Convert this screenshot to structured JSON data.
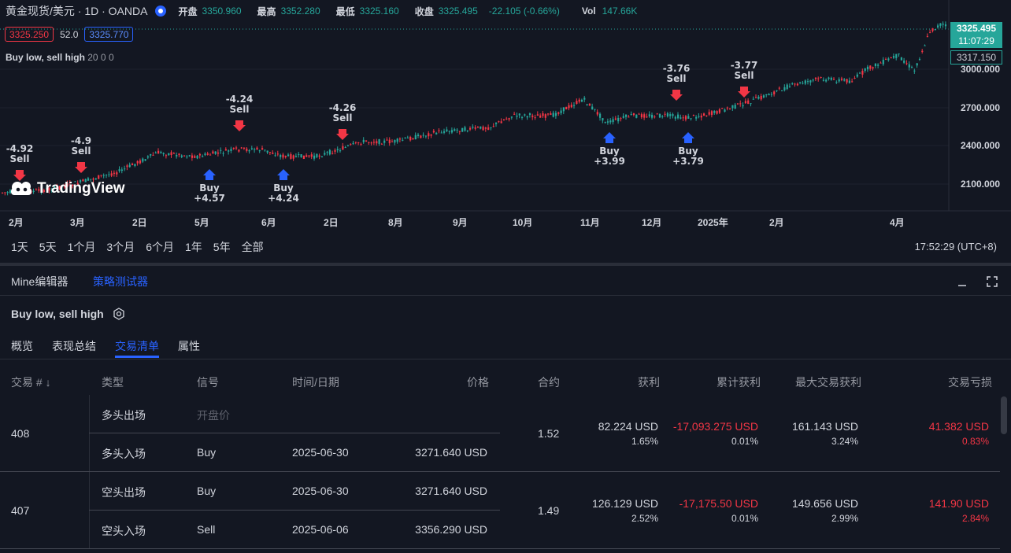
{
  "header": {
    "symbol": "黄金现货/美元 · 1D · OANDA",
    "open_label": "开盘",
    "open": "3350.960",
    "high_label": "最高",
    "high": "3352.280",
    "low_label": "最低",
    "low": "3325.160",
    "close_label": "收盘",
    "close": "3325.495",
    "change": "-22.105 (-0.66%)",
    "vol_label": "Vol",
    "vol": "147.66K",
    "bid": "3325.250",
    "spread": "52.0",
    "ask": "3325.770"
  },
  "strategy_legend": {
    "name": "Buy low, sell high",
    "params": "20 0 0"
  },
  "price_scale": {
    "ticks": [
      "3000.000",
      "2700.000",
      "2400.000",
      "2100.000"
    ],
    "last_price": "3325.495",
    "countdown": "11:07:29",
    "ref_price": "3317.150"
  },
  "time_axis": [
    "2月",
    "3月",
    "2日",
    "5月",
    "6月",
    "2日",
    "8月",
    "9月",
    "10月",
    "11月",
    "12月",
    "2025年",
    "2月",
    "4月"
  ],
  "logo": "TradingView",
  "signals": [
    {
      "kind": "sell",
      "pnl": "-4.92",
      "label": "Sell"
    },
    {
      "kind": "sell",
      "pnl": "-4.9",
      "label": "Sell"
    },
    {
      "kind": "buy",
      "pnl": "+4.57",
      "label": "Buy"
    },
    {
      "kind": "sell",
      "pnl": "-4.24",
      "label": "Sell"
    },
    {
      "kind": "buy",
      "pnl": "+4.24",
      "label": "Buy"
    },
    {
      "kind": "sell",
      "pnl": "-4.26",
      "label": "Sell"
    },
    {
      "kind": "buy",
      "pnl": "+3.99",
      "label": "Buy"
    },
    {
      "kind": "sell",
      "pnl": "-3.76",
      "label": "Sell"
    },
    {
      "kind": "buy",
      "pnl": "+3.79",
      "label": "Buy"
    },
    {
      "kind": "sell",
      "pnl": "-3.77",
      "label": "Sell"
    }
  ],
  "ranges": [
    "1天",
    "5天",
    "1个月",
    "3个月",
    "6个月",
    "1年",
    "5年",
    "全部"
  ],
  "clock": "17:52:29 (UTC+8)",
  "panel": {
    "tab_editor": "Mine编辑器",
    "tab_tester": "策略测试器",
    "strategy_name": "Buy low, sell high",
    "sub_tabs": [
      "概览",
      "表现总结",
      "交易清单",
      "属性"
    ]
  },
  "table": {
    "headers": {
      "trade_no": "交易 # ↓",
      "type": "类型",
      "signal": "信号",
      "datetime": "时间/日期",
      "price": "价格",
      "contracts": "合约",
      "profit": "获利",
      "cum_profit": "累计获利",
      "max_runup": "最大交易获利",
      "drawdown": "交易亏损"
    },
    "trades": [
      {
        "id": "408",
        "exit_type": "多头出场",
        "exit_signal": "开盘价",
        "exit_date": "",
        "exit_price": "",
        "entry_type": "多头入场",
        "entry_signal": "Buy",
        "entry_date": "2025-06-30",
        "entry_price": "3271.640 USD",
        "contracts": "1.52",
        "profit": "82.224 USD",
        "profit_pct": "1.65%",
        "cum_profit": "-17,093.275 USD",
        "cum_profit_pct": "0.01%",
        "runup": "161.143 USD",
        "runup_pct": "3.24%",
        "drawdown": "41.382 USD",
        "drawdown_pct": "0.83%"
      },
      {
        "id": "407",
        "exit_type": "空头出场",
        "exit_signal": "Buy",
        "exit_date": "2025-06-30",
        "exit_price": "3271.640 USD",
        "entry_type": "空头入场",
        "entry_signal": "Sell",
        "entry_date": "2025-06-06",
        "entry_price": "3356.290 USD",
        "contracts": "1.49",
        "profit": "126.129 USD",
        "profit_pct": "2.52%",
        "cum_profit": "-17,175.50 USD",
        "cum_profit_pct": "0.01%",
        "runup": "149.656 USD",
        "runup_pct": "2.99%",
        "drawdown": "141.90 USD",
        "drawdown_pct": "2.84%"
      }
    ]
  },
  "colors": {
    "up": "#26a69a",
    "down": "#f23645",
    "accent": "#2962ff",
    "bg": "#131722"
  }
}
